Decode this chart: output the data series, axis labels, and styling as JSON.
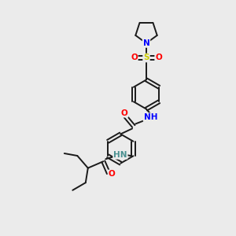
{
  "background_color": "#ebebeb",
  "bond_color": "#1a1a1a",
  "bond_width": 1.4,
  "atom_colors": {
    "N": "#0000ff",
    "O": "#ff0000",
    "S": "#cccc00",
    "HN": "#4a9090"
  },
  "font_size": 7.5
}
